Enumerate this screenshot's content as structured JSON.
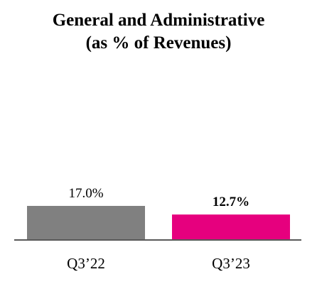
{
  "chart_data": {
    "type": "bar",
    "title_lines": [
      "General and Administrative",
      "(as % of Revenues)"
    ],
    "categories": [
      "Q3’22",
      "Q3’23"
    ],
    "values": [
      17.0,
      12.7
    ],
    "value_labels": [
      "17.0%",
      "12.7%"
    ],
    "bold_labels": [
      false,
      true
    ],
    "colors": [
      "#808080",
      "#e6007e"
    ],
    "axis_color": "#595959",
    "ylim": [
      0,
      17.0
    ],
    "grid": false,
    "xlabel": "",
    "ylabel": ""
  }
}
